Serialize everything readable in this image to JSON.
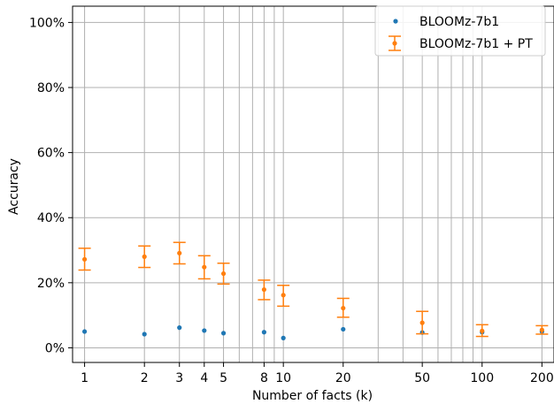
{
  "chart_data": {
    "type": "scatter",
    "title": "",
    "xlabel": "Number of facts (k)",
    "ylabel": "Accuracy",
    "xscale": "log",
    "xlim": [
      0.87,
      230
    ],
    "ylim": [
      -0.045,
      1.05
    ],
    "xticks": [
      1,
      2,
      3,
      4,
      5,
      8,
      10,
      20,
      50,
      100,
      200
    ],
    "xtick_labels": [
      "1",
      "2",
      "3",
      "4",
      "5",
      "8",
      "10",
      "20",
      "50",
      "100",
      "200"
    ],
    "x_minor_gridlines": [
      6,
      7,
      9,
      30,
      40,
      60,
      70,
      80,
      90
    ],
    "yticks": [
      0,
      0.2,
      0.4,
      0.6,
      0.8,
      1.0
    ],
    "ytick_labels": [
      "0%",
      "20%",
      "40%",
      "60%",
      "80%",
      "100%"
    ],
    "grid": true,
    "legend_position": "top-right",
    "series": [
      {
        "name": "BLOOMz-7b1",
        "color": "#1f77b4",
        "error_bars": false,
        "points": [
          {
            "x": 1,
            "y": 0.05
          },
          {
            "x": 2,
            "y": 0.042
          },
          {
            "x": 3,
            "y": 0.062
          },
          {
            "x": 4,
            "y": 0.053
          },
          {
            "x": 5,
            "y": 0.045
          },
          {
            "x": 8,
            "y": 0.048
          },
          {
            "x": 10,
            "y": 0.03
          },
          {
            "x": 20,
            "y": 0.057
          },
          {
            "x": 50,
            "y": 0.047
          },
          {
            "x": 100,
            "y": 0.048
          },
          {
            "x": 200,
            "y": 0.05
          }
        ]
      },
      {
        "name": "BLOOMz-7b1 + PT",
        "color": "#ff7f0e",
        "error_bars": true,
        "points": [
          {
            "x": 1,
            "y": 0.272,
            "low": 0.239,
            "high": 0.306
          },
          {
            "x": 2,
            "y": 0.28,
            "low": 0.247,
            "high": 0.313
          },
          {
            "x": 3,
            "y": 0.291,
            "low": 0.258,
            "high": 0.324
          },
          {
            "x": 4,
            "y": 0.248,
            "low": 0.212,
            "high": 0.283
          },
          {
            "x": 5,
            "y": 0.228,
            "low": 0.196,
            "high": 0.26
          },
          {
            "x": 8,
            "y": 0.179,
            "low": 0.148,
            "high": 0.208
          },
          {
            "x": 10,
            "y": 0.162,
            "low": 0.128,
            "high": 0.192
          },
          {
            "x": 20,
            "y": 0.122,
            "low": 0.094,
            "high": 0.152
          },
          {
            "x": 50,
            "y": 0.077,
            "low": 0.043,
            "high": 0.112
          },
          {
            "x": 100,
            "y": 0.052,
            "low": 0.035,
            "high": 0.071
          },
          {
            "x": 200,
            "y": 0.055,
            "low": 0.042,
            "high": 0.068
          }
        ]
      }
    ]
  }
}
